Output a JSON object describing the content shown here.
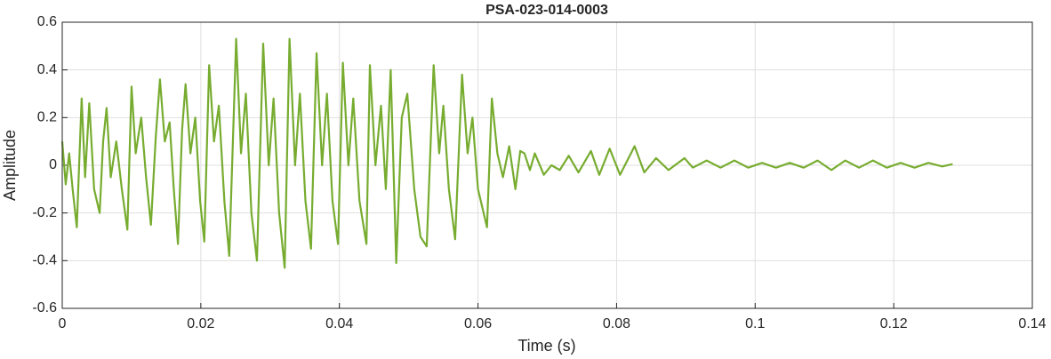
{
  "chart_data": {
    "type": "line",
    "title": "PSA-023-014-0003",
    "xlabel": "Time (s)",
    "ylabel": "Amplitude",
    "xlim": [
      0,
      0.14
    ],
    "xticks": [
      0,
      0.02,
      0.04,
      0.06,
      0.08,
      0.1,
      0.12,
      0.14
    ],
    "ylim": [
      -0.6,
      0.6
    ],
    "yticks": [
      -0.6,
      -0.4,
      -0.2,
      0,
      0.2,
      0.4,
      0.6
    ],
    "grid": true,
    "series": [
      {
        "color": "#77ac30",
        "x": [
          0,
          0.0005,
          0.001,
          0.0015,
          0.0021,
          0.0028,
          0.0033,
          0.0039,
          0.0046,
          0.0054,
          0.0059,
          0.0064,
          0.007,
          0.0078,
          0.0086,
          0.0094,
          0.01,
          0.0106,
          0.0114,
          0.0121,
          0.0128,
          0.0135,
          0.0141,
          0.0148,
          0.0155,
          0.0161,
          0.0167,
          0.0173,
          0.0178,
          0.0185,
          0.0192,
          0.0199,
          0.0205,
          0.0212,
          0.0219,
          0.0226,
          0.0234,
          0.0241,
          0.0251,
          0.0258,
          0.0265,
          0.0273,
          0.0281,
          0.029,
          0.0298,
          0.0305,
          0.0313,
          0.0321,
          0.0328,
          0.0336,
          0.0343,
          0.0351,
          0.0359,
          0.0367,
          0.0375,
          0.0382,
          0.039,
          0.0398,
          0.0405,
          0.0413,
          0.042,
          0.0429,
          0.0439,
          0.0444,
          0.0452,
          0.046,
          0.0467,
          0.0474,
          0.0482,
          0.049,
          0.0498,
          0.0508,
          0.0517,
          0.0526,
          0.0536,
          0.0544,
          0.055,
          0.0558,
          0.0567,
          0.0577,
          0.0585,
          0.0592,
          0.06,
          0.0613,
          0.062,
          0.0628,
          0.0636,
          0.0645,
          0.0654,
          0.0661,
          0.0667,
          0.0675,
          0.0682,
          0.0695,
          0.0706,
          0.0718,
          0.0731,
          0.0745,
          0.0763,
          0.0775,
          0.079,
          0.0805,
          0.0826,
          0.084,
          0.0857,
          0.0875,
          0.0898,
          0.091,
          0.093,
          0.095,
          0.097,
          0.099,
          0.101,
          0.103,
          0.105,
          0.107,
          0.109,
          0.111,
          0.113,
          0.115,
          0.117,
          0.119,
          0.121,
          0.123,
          0.125,
          0.127,
          0.1285
        ],
        "values": [
          0.1,
          -0.08,
          0.05,
          -0.1,
          -0.26,
          0.28,
          -0.05,
          0.26,
          -0.1,
          -0.2,
          0.1,
          0.24,
          -0.05,
          0.1,
          -0.1,
          -0.27,
          0.33,
          0.05,
          0.2,
          -0.05,
          -0.25,
          0.12,
          0.36,
          0.1,
          0.18,
          -0.1,
          -0.33,
          0.15,
          0.34,
          0.05,
          0.2,
          -0.15,
          -0.32,
          0.42,
          0.1,
          0.25,
          -0.15,
          -0.38,
          0.53,
          0.05,
          0.3,
          -0.2,
          -0.4,
          0.51,
          0,
          0.28,
          -0.2,
          -0.43,
          0.53,
          0,
          0.3,
          -0.15,
          -0.35,
          0.47,
          0,
          0.3,
          -0.15,
          -0.33,
          0.43,
          0,
          0.28,
          -0.15,
          -0.33,
          0.42,
          0,
          0.25,
          -0.1,
          0.4,
          -0.41,
          0.2,
          0.3,
          -0.1,
          -0.3,
          -0.34,
          0.42,
          0.05,
          0.25,
          -0.1,
          -0.31,
          0.38,
          0.05,
          0.2,
          -0.1,
          -0.26,
          0.28,
          0.05,
          -0.05,
          0.08,
          -0.1,
          0.06,
          0.05,
          -0.02,
          0.05,
          -0.04,
          0,
          -0.02,
          0.04,
          -0.03,
          0.06,
          -0.04,
          0.07,
          -0.04,
          0.08,
          -0.03,
          0.03,
          -0.02,
          0.03,
          -0.01,
          0.02,
          -0.01,
          0.02,
          -0.01,
          0.01,
          -0.01,
          0.01,
          -0.01,
          0.02,
          -0.02,
          0.02,
          -0.01,
          0.02,
          -0.01,
          0.01,
          -0.01,
          0.01,
          -0.005,
          0.005
        ]
      }
    ]
  }
}
